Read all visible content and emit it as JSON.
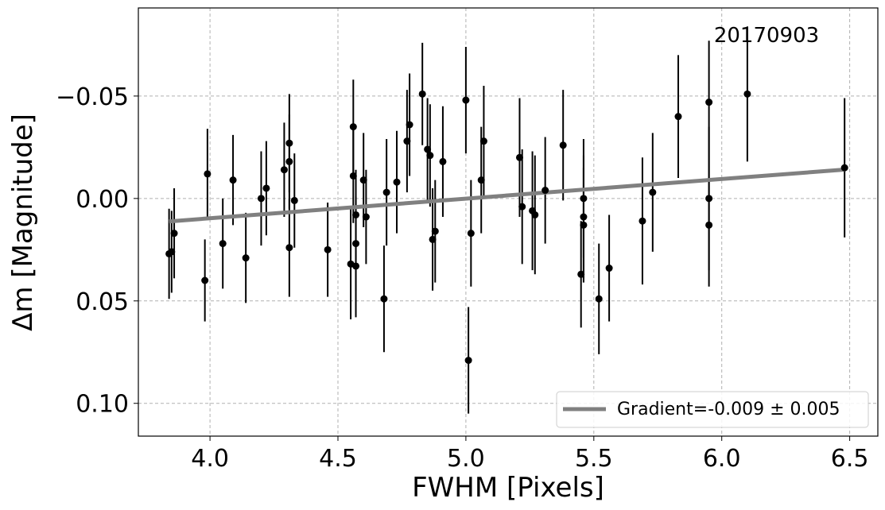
{
  "chart_data": {
    "type": "scatter",
    "xlabel": "FWHM [Pixels]",
    "ylabel": "Δm [Magnitude]",
    "xlim": [
      3.72,
      6.61
    ],
    "ylim": [
      0.116,
      -0.093
    ],
    "y_inverted": true,
    "grid": true,
    "legend_position": "lower-right",
    "annotation": "20170903",
    "x_ticks": [
      4.0,
      4.5,
      5.0,
      5.5,
      6.0,
      6.5
    ],
    "x_tick_labels": [
      "4.0",
      "4.5",
      "5.0",
      "5.5",
      "6.0",
      "6.5"
    ],
    "y_ticks": [
      -0.05,
      0.0,
      0.05,
      0.1
    ],
    "y_tick_labels": [
      "−0.05",
      "0.00",
      "0.05",
      "0.10"
    ],
    "series": [
      {
        "name": "data",
        "kind": "errorbar",
        "color": "#000000",
        "points": [
          {
            "x": 3.84,
            "y": 0.027,
            "err": 0.022
          },
          {
            "x": 3.85,
            "y": 0.026,
            "err": 0.02
          },
          {
            "x": 3.86,
            "y": 0.017,
            "err": 0.022
          },
          {
            "x": 3.98,
            "y": 0.04,
            "err": 0.02
          },
          {
            "x": 3.99,
            "y": -0.012,
            "err": 0.022
          },
          {
            "x": 4.05,
            "y": 0.022,
            "err": 0.022
          },
          {
            "x": 4.09,
            "y": -0.009,
            "err": 0.022
          },
          {
            "x": 4.14,
            "y": 0.029,
            "err": 0.022
          },
          {
            "x": 4.2,
            "y": 0.0,
            "err": 0.023
          },
          {
            "x": 4.22,
            "y": -0.005,
            "err": 0.023
          },
          {
            "x": 4.29,
            "y": -0.014,
            "err": 0.023
          },
          {
            "x": 4.31,
            "y": -0.018,
            "err": 0.023
          },
          {
            "x": 4.31,
            "y": -0.027,
            "err": 0.024
          },
          {
            "x": 4.31,
            "y": 0.024,
            "err": 0.024
          },
          {
            "x": 4.33,
            "y": 0.001,
            "err": 0.023
          },
          {
            "x": 4.46,
            "y": 0.025,
            "err": 0.023
          },
          {
            "x": 4.55,
            "y": 0.032,
            "err": 0.027
          },
          {
            "x": 4.56,
            "y": -0.035,
            "err": 0.023
          },
          {
            "x": 4.56,
            "y": -0.011,
            "err": 0.023
          },
          {
            "x": 4.57,
            "y": 0.022,
            "err": 0.023
          },
          {
            "x": 4.57,
            "y": 0.008,
            "err": 0.022
          },
          {
            "x": 4.57,
            "y": 0.033,
            "err": 0.025
          },
          {
            "x": 4.6,
            "y": -0.009,
            "err": 0.023
          },
          {
            "x": 4.61,
            "y": 0.009,
            "err": 0.023
          },
          {
            "x": 4.68,
            "y": 0.049,
            "err": 0.026
          },
          {
            "x": 4.69,
            "y": -0.003,
            "err": 0.026
          },
          {
            "x": 4.73,
            "y": -0.008,
            "err": 0.025
          },
          {
            "x": 4.77,
            "y": -0.028,
            "err": 0.025
          },
          {
            "x": 4.78,
            "y": -0.036,
            "err": 0.025
          },
          {
            "x": 4.83,
            "y": -0.051,
            "err": 0.025
          },
          {
            "x": 4.85,
            "y": -0.024,
            "err": 0.025
          },
          {
            "x": 4.86,
            "y": -0.021,
            "err": 0.025
          },
          {
            "x": 4.87,
            "y": 0.02,
            "err": 0.025
          },
          {
            "x": 4.88,
            "y": 0.016,
            "err": 0.025
          },
          {
            "x": 4.91,
            "y": -0.018,
            "err": 0.027
          },
          {
            "x": 5.0,
            "y": -0.048,
            "err": 0.026
          },
          {
            "x": 5.01,
            "y": 0.079,
            "err": 0.026
          },
          {
            "x": 5.02,
            "y": 0.017,
            "err": 0.026
          },
          {
            "x": 5.06,
            "y": -0.009,
            "err": 0.026
          },
          {
            "x": 5.07,
            "y": -0.028,
            "err": 0.027
          },
          {
            "x": 5.21,
            "y": -0.02,
            "err": 0.029
          },
          {
            "x": 5.22,
            "y": 0.004,
            "err": 0.028
          },
          {
            "x": 5.26,
            "y": 0.006,
            "err": 0.029
          },
          {
            "x": 5.27,
            "y": 0.008,
            "err": 0.029
          },
          {
            "x": 5.31,
            "y": -0.004,
            "err": 0.026
          },
          {
            "x": 5.38,
            "y": -0.026,
            "err": 0.027
          },
          {
            "x": 5.45,
            "y": 0.037,
            "err": 0.026
          },
          {
            "x": 5.46,
            "y": 0.0,
            "err": 0.029
          },
          {
            "x": 5.46,
            "y": 0.009,
            "err": 0.03
          },
          {
            "x": 5.46,
            "y": 0.013,
            "err": 0.028
          },
          {
            "x": 5.52,
            "y": 0.049,
            "err": 0.027
          },
          {
            "x": 5.56,
            "y": 0.034,
            "err": 0.026
          },
          {
            "x": 5.69,
            "y": 0.011,
            "err": 0.031
          },
          {
            "x": 5.73,
            "y": -0.003,
            "err": 0.029
          },
          {
            "x": 5.83,
            "y": -0.04,
            "err": 0.03
          },
          {
            "x": 5.95,
            "y": -0.047,
            "err": 0.03
          },
          {
            "x": 5.95,
            "y": 0.0,
            "err": 0.035
          },
          {
            "x": 5.95,
            "y": 0.013,
            "err": 0.03
          },
          {
            "x": 6.1,
            "y": -0.051,
            "err": 0.033
          },
          {
            "x": 6.48,
            "y": -0.015,
            "err": 0.034
          }
        ]
      },
      {
        "name": "Gradient=-0.009 ± 0.005",
        "kind": "line",
        "color": "#808080",
        "x": [
          3.84,
          6.48
        ],
        "y": [
          0.0112,
          -0.0141
        ]
      }
    ]
  }
}
